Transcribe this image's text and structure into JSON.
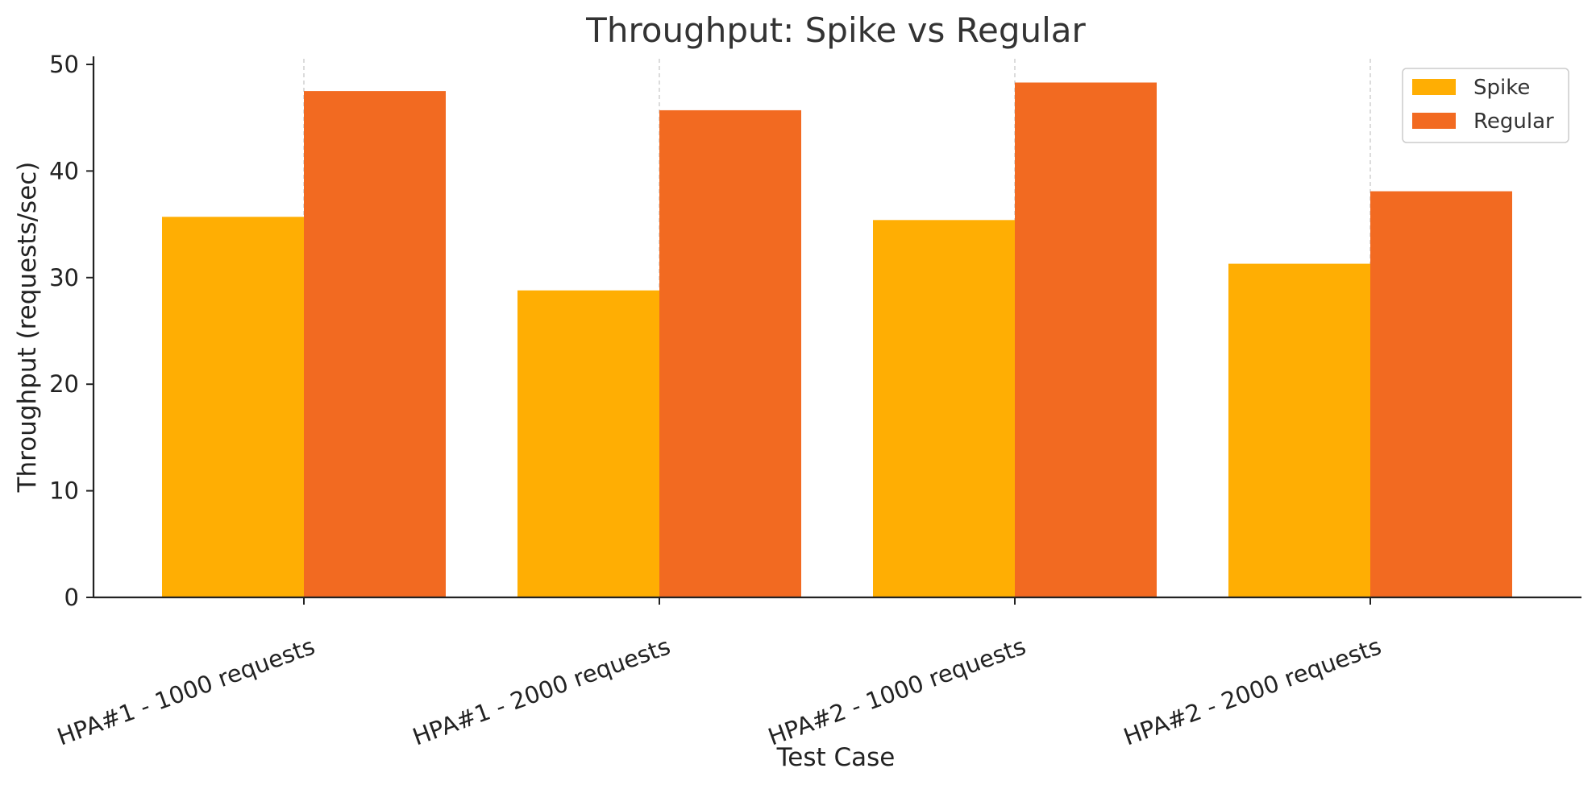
{
  "chart_data": {
    "type": "bar",
    "title": "Throughput: Spike vs Regular",
    "xlabel": "Test Case",
    "ylabel": "Throughput (requests/sec)",
    "categories": [
      "HPA#1 - 1000 requests",
      "HPA#1 - 2000 requests",
      "HPA#2 - 1000 requests",
      "HPA#2 - 2000 requests"
    ],
    "series": [
      {
        "name": "Spike",
        "color": "#FFAE03",
        "values": [
          35.7,
          28.8,
          35.4,
          31.3
        ]
      },
      {
        "name": "Regular",
        "color": "#F26A21",
        "values": [
          47.5,
          45.7,
          48.3,
          38.1
        ]
      }
    ],
    "ylim": [
      0,
      50
    ],
    "yticks": [
      0,
      10,
      20,
      30,
      40,
      50
    ],
    "grid": "x-only dashed",
    "legend_position": "top-right"
  }
}
